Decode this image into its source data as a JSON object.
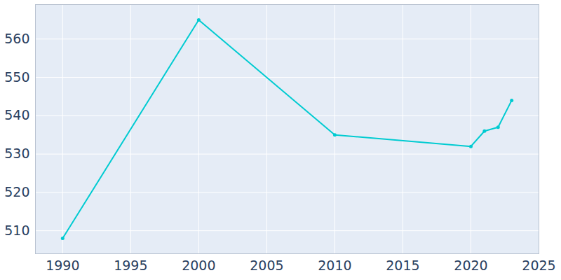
{
  "chart_data": {
    "type": "line",
    "x": [
      1990,
      2000,
      2010,
      2020,
      2021,
      2022,
      2023
    ],
    "values": [
      508,
      565,
      535,
      532,
      536,
      537,
      544
    ],
    "color": "#00cbd1",
    "marker": "circle",
    "xlim": [
      1988,
      2025
    ],
    "xticks": [
      1990,
      1995,
      2000,
      2005,
      2010,
      2015,
      2020,
      2025
    ],
    "ylim": [
      504,
      569
    ],
    "yticks": [
      510,
      520,
      530,
      540,
      550,
      560
    ],
    "grid": true
  }
}
